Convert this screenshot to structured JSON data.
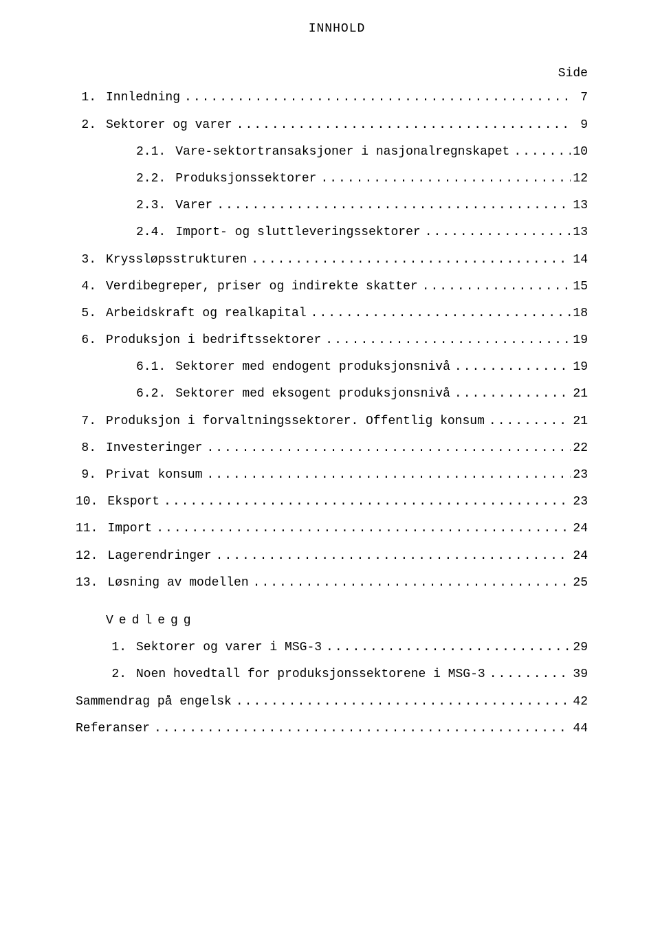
{
  "title": "INNHOLD",
  "page_column_header": "Side",
  "entries": [
    {
      "num": "1.",
      "text": "Innledning",
      "page": "7",
      "indent": 0
    },
    {
      "num": "2.",
      "text": "Sektorer og varer",
      "page": "9",
      "indent": 0,
      "gap": true
    },
    {
      "num": "2.1.",
      "text": "Vare-sektortransaksjoner i nasjonalregnskapet",
      "page": "10",
      "indent": 2
    },
    {
      "num": "2.2.",
      "text": "Produksjonssektorer",
      "page": "12",
      "indent": 2
    },
    {
      "num": "2.3.",
      "text": "Varer",
      "page": "13",
      "indent": 2
    },
    {
      "num": "2.4.",
      "text": "Import- og sluttleveringssektorer",
      "page": "13",
      "indent": 2
    },
    {
      "num": "3.",
      "text": "Kryssløpsstrukturen",
      "page": "14",
      "indent": 0,
      "gap": true
    },
    {
      "num": "4.",
      "text": "Verdibegreper, priser og indirekte skatter",
      "page": "15",
      "indent": 0,
      "gap": true
    },
    {
      "num": "5.",
      "text": "Arbeidskraft og realkapital",
      "page": "18",
      "indent": 0,
      "gap": true
    },
    {
      "num": "6.",
      "text": "Produksjon i bedriftssektorer",
      "page": "19",
      "indent": 0,
      "gap": true
    },
    {
      "num": "6.1.",
      "text": "Sektorer med endogent produksjonsnivå",
      "page": "19",
      "indent": 2
    },
    {
      "num": "6.2.",
      "text": "Sektorer med eksogent produksjonsnivå",
      "page": "21",
      "indent": 2
    },
    {
      "num": "7.",
      "text": "Produksjon i forvaltningssektorer. Offentlig konsum",
      "page": "21",
      "indent": 0,
      "gap": true
    },
    {
      "num": "8.",
      "text": "Investeringer",
      "page": "22",
      "indent": 0,
      "gap": true
    },
    {
      "num": "9.",
      "text": "Privat konsum",
      "page": "23",
      "indent": 0,
      "gap": true
    },
    {
      "num": "10.",
      "text": "Eksport",
      "page": "23",
      "indent": 0,
      "gap": true
    },
    {
      "num": "11.",
      "text": "Import",
      "page": "24",
      "indent": 0,
      "gap": true
    },
    {
      "num": "12.",
      "text": "Lagerendringer",
      "page": "24",
      "indent": 0,
      "gap": true
    },
    {
      "num": "13.",
      "text": "Løsning av modellen",
      "page": "25",
      "indent": 0,
      "gap": true
    }
  ],
  "vedlegg_header": "Vedlegg",
  "vedlegg_entries": [
    {
      "num": "1.",
      "text": "Sektorer og varer i MSG-3",
      "page": "29",
      "indent": 1
    },
    {
      "num": "2.",
      "text": "Noen hovedtall for produksjonssektorene i MSG-3",
      "page": "39",
      "indent": 1
    },
    {
      "num": "",
      "text": "Sammendrag på engelsk",
      "page": "42",
      "indent": -1
    },
    {
      "num": "",
      "text": "Referanser",
      "page": "44",
      "indent": -1
    }
  ],
  "dots_fill": "............................................................"
}
